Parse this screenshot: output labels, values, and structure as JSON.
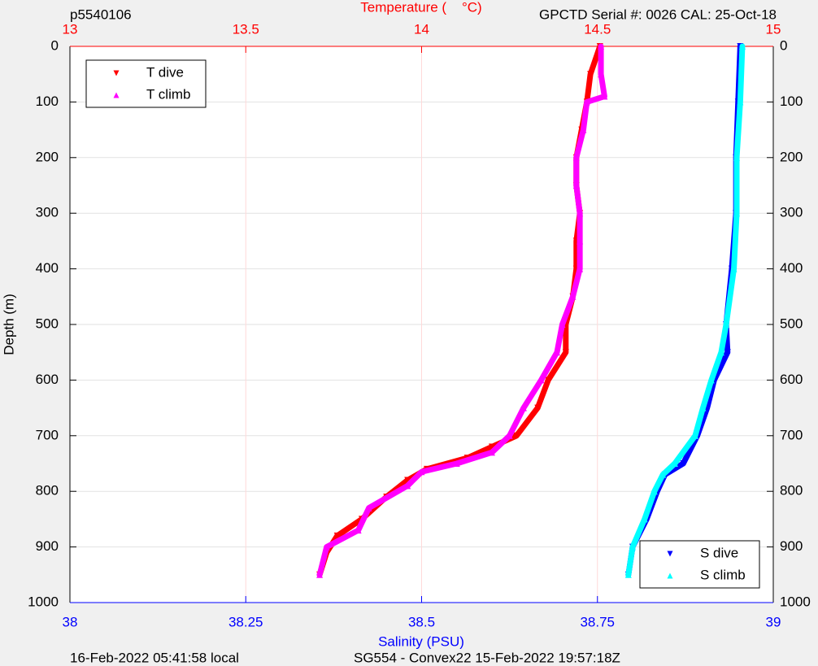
{
  "chart_data": {
    "type": "profile",
    "title": "p5540106",
    "subtitle": "GPCTD Serial #: 0026 CAL: 25-Oct-18",
    "x2label": "Temperature (    °C)",
    "xlabel": "Salinity (PSU)",
    "ylabel": "Depth (m)",
    "footer_left": "16-Feb-2022 05:41:58 local",
    "footer_right": "SG554 - Convex22 15-Feb-2022 19:57:18Z",
    "xlim": [
      38,
      39
    ],
    "xticks": [
      38,
      38.25,
      38.5,
      38.75,
      39
    ],
    "x_axis_color": "#0000ff",
    "x2lim": [
      13,
      15
    ],
    "x2ticks": [
      13,
      13.5,
      14,
      14.5,
      15
    ],
    "x2_axis_color": "#ff0000",
    "ylim": [
      1000,
      0
    ],
    "yticks": [
      0,
      100,
      200,
      300,
      400,
      500,
      600,
      700,
      800,
      900,
      1000
    ],
    "grid": true,
    "legend": {
      "x2": "upper left",
      "x": "lower right"
    },
    "series": [
      {
        "name": "T dive",
        "color": "#ff0000",
        "marker": "v",
        "axis": "x2",
        "x": [
          14.507,
          14.48,
          14.47,
          14.455,
          14.44,
          14.44,
          14.45,
          14.44,
          14.44,
          14.43,
          14.41,
          14.41,
          14.36,
          14.33,
          14.27,
          14.2,
          14.13,
          14.015,
          13.96,
          13.9,
          13.83,
          13.76,
          13.73,
          13.71
        ],
        "y": [
          0,
          50,
          100,
          150,
          200,
          250,
          300,
          350,
          400,
          450,
          500,
          550,
          600,
          650,
          700,
          720,
          740,
          760,
          780,
          810,
          850,
          880,
          910,
          950
        ]
      },
      {
        "name": "T climb",
        "color": "#ff00ff",
        "marker": "^",
        "axis": "x2",
        "x": [
          14.51,
          14.51,
          14.52,
          14.47,
          14.46,
          14.44,
          14.44,
          14.45,
          14.45,
          14.45,
          14.43,
          14.4,
          14.385,
          14.34,
          14.29,
          14.25,
          14.2,
          14.1,
          14.0,
          13.96,
          13.85,
          13.82,
          13.73,
          13.71
        ],
        "y": [
          0,
          50,
          90,
          100,
          150,
          200,
          250,
          300,
          350,
          400,
          450,
          500,
          550,
          600,
          650,
          700,
          730,
          750,
          765,
          790,
          830,
          870,
          900,
          950
        ]
      },
      {
        "name": "S dive",
        "color": "#0000ff",
        "marker": "v",
        "axis": "x",
        "x": [
          38.953,
          38.95,
          38.947,
          38.947,
          38.941,
          38.933,
          38.935,
          38.916,
          38.906,
          38.892,
          38.872,
          38.846,
          38.835,
          38.82,
          38.8,
          38.794
        ],
        "y": [
          0,
          100,
          200,
          300,
          400,
          500,
          550,
          600,
          650,
          700,
          750,
          770,
          800,
          850,
          900,
          950
        ]
      },
      {
        "name": "S climb",
        "color": "#00ffff",
        "marker": "^",
        "axis": "x",
        "x": [
          38.956,
          38.953,
          38.948,
          38.948,
          38.944,
          38.933,
          38.926,
          38.912,
          38.9,
          38.889,
          38.86,
          38.843,
          38.831,
          38.817,
          38.8,
          38.794
        ],
        "y": [
          0,
          100,
          200,
          300,
          400,
          500,
          550,
          600,
          650,
          700,
          750,
          770,
          800,
          850,
          900,
          950
        ]
      }
    ]
  }
}
